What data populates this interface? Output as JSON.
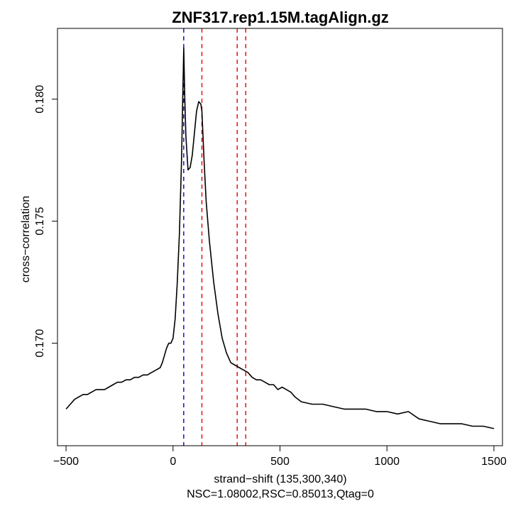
{
  "chart_data": {
    "type": "line",
    "title": "ZNF317.rep1.15M.tagAlign.gz",
    "xlabel": "strand−shift (135,300,340)",
    "subtitle": "NSC=1.08002,RSC=0.85013,Qtag=0",
    "ylabel": "cross−correlation",
    "xlim": [
      -540,
      1540
    ],
    "ylim": [
      0.1658,
      0.1829
    ],
    "x_ticks": [
      -500,
      0,
      500,
      1000,
      1500
    ],
    "x_tick_labels": [
      "−500",
      "0",
      "500",
      "1000",
      "1500"
    ],
    "y_ticks": [
      0.17,
      0.175,
      0.18
    ],
    "y_tick_labels": [
      "0.170",
      "0.175",
      "0.180"
    ],
    "grid": false,
    "series": [
      {
        "color": "#000000",
        "x": [
          -500,
          -480,
          -460,
          -440,
          -420,
          -400,
          -380,
          -360,
          -340,
          -320,
          -300,
          -280,
          -260,
          -240,
          -220,
          -200,
          -180,
          -160,
          -140,
          -120,
          -100,
          -80,
          -60,
          -50,
          -40,
          -30,
          -20,
          -10,
          0,
          10,
          20,
          30,
          40,
          45,
          50,
          55,
          60,
          70,
          80,
          90,
          100,
          110,
          120,
          130,
          135,
          145,
          155,
          170,
          190,
          210,
          230,
          250,
          270,
          290,
          310,
          330,
          350,
          370,
          390,
          410,
          430,
          450,
          470,
          490,
          510,
          530,
          550,
          570,
          600,
          650,
          700,
          750,
          800,
          850,
          900,
          950,
          1000,
          1050,
          1100,
          1150,
          1200,
          1250,
          1300,
          1350,
          1400,
          1450,
          1500
        ],
        "values": [
          0.1673,
          0.1675,
          0.1677,
          0.1678,
          0.1679,
          0.1679,
          0.168,
          0.1681,
          0.1681,
          0.1681,
          0.1682,
          0.1683,
          0.1684,
          0.1684,
          0.1685,
          0.1685,
          0.1686,
          0.1686,
          0.1687,
          0.1687,
          0.1688,
          0.1689,
          0.169,
          0.1692,
          0.1695,
          0.1698,
          0.17,
          0.17,
          0.1702,
          0.171,
          0.1725,
          0.1745,
          0.1775,
          0.1798,
          0.1821,
          0.18,
          0.1785,
          0.1771,
          0.1772,
          0.1777,
          0.1786,
          0.1795,
          0.1799,
          0.1798,
          0.1795,
          0.1775,
          0.1758,
          0.1742,
          0.1725,
          0.1712,
          0.1702,
          0.1696,
          0.1692,
          0.1691,
          0.169,
          0.1689,
          0.1688,
          0.1686,
          0.1685,
          0.1685,
          0.1684,
          0.1683,
          0.1683,
          0.1681,
          0.1682,
          0.1681,
          0.168,
          0.1678,
          0.1676,
          0.1675,
          0.1675,
          0.1674,
          0.1673,
          0.1673,
          0.1673,
          0.1672,
          0.1672,
          0.1671,
          0.1672,
          0.1669,
          0.1668,
          0.1667,
          0.1667,
          0.1667,
          0.1666,
          0.1666,
          0.1665
        ]
      }
    ],
    "vlines": [
      {
        "x": 50,
        "color": "#0000cc",
        "style": "dashed"
      },
      {
        "x": 135,
        "color": "#ee0000",
        "style": "dashed"
      },
      {
        "x": 300,
        "color": "#ee0000",
        "style": "dashed"
      },
      {
        "x": 340,
        "color": "#ee0000",
        "style": "dashed"
      }
    ]
  }
}
